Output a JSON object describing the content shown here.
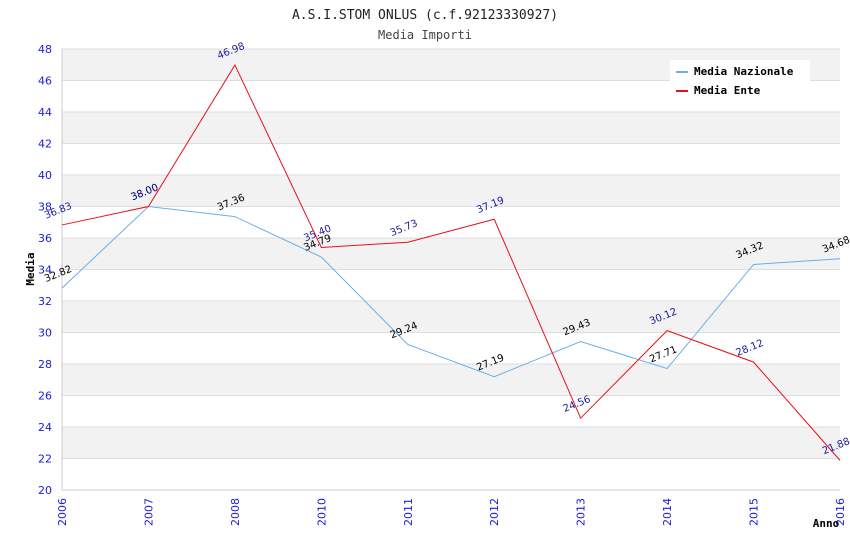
{
  "chart_data": {
    "type": "line",
    "title": "A.S.I.STOM ONLUS (c.f.92123330927)",
    "subtitle": "Media Importi",
    "xlabel": "Anno",
    "ylabel": "Media",
    "categories": [
      "2006",
      "2007",
      "2008",
      "2010",
      "2011",
      "2012",
      "2013",
      "2014",
      "2015",
      "2016"
    ],
    "ylim": [
      20,
      48
    ],
    "yticks": [
      "20",
      "22",
      "24",
      "26",
      "28",
      "30",
      "32",
      "34",
      "36",
      "38",
      "40",
      "42",
      "44",
      "46",
      "48"
    ],
    "grid": true,
    "legend_position": "top-right",
    "series": [
      {
        "name": "Media Nazionale",
        "color": "#6aaee8",
        "label_color": "#000000",
        "values": [
          32.82,
          38.0,
          37.36,
          34.79,
          29.24,
          27.19,
          29.43,
          27.71,
          34.32,
          34.68
        ],
        "labels": [
          "32.82",
          "38.00",
          "37.36",
          "34.79",
          "29.24",
          "27.19",
          "29.43",
          "27.71",
          "34.32",
          "34.68"
        ]
      },
      {
        "name": "Media Ente",
        "color": "#e8101a",
        "label_color": "#1a1a9e",
        "values": [
          36.83,
          38.0,
          46.98,
          35.4,
          35.73,
          37.19,
          24.56,
          30.12,
          28.12,
          21.88
        ],
        "labels": [
          "36.83",
          "38.00",
          "46.98",
          "35.40",
          "35.73",
          "37.19",
          "24.56",
          "30.12",
          "28.12",
          "21.88"
        ]
      }
    ]
  }
}
